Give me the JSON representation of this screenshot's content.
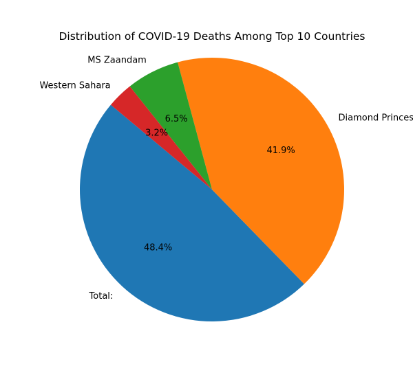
{
  "chart_data": {
    "type": "pie",
    "title": "Distribution of COVID-19 Deaths Among Top 10 Countries",
    "categories": [
      "Total:",
      "Diamond Princess",
      "MS Zaandam",
      "Western Sahara"
    ],
    "values": [
      48.4,
      41.9,
      6.5,
      3.2
    ],
    "value_labels": [
      "48.4%",
      "41.9%",
      "6.5%",
      "3.2%"
    ],
    "colors": [
      "#1f77b4",
      "#ff7f0e",
      "#2ca02c",
      "#d62728"
    ],
    "start_angle_deg": 140,
    "direction": "counterclockwise",
    "legend": "none"
  }
}
